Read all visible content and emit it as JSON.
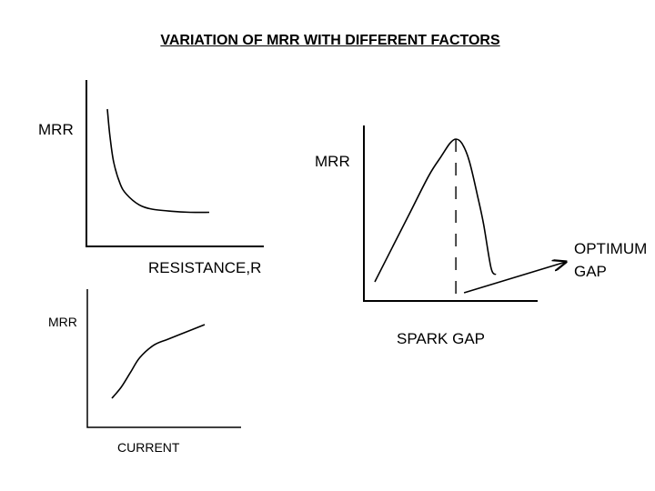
{
  "title": "VARIATION OF MRR WITH DIFFERENT FACTORS",
  "colors": {
    "ink": "#000000",
    "background": "#ffffff"
  },
  "chart_data": [
    {
      "type": "line",
      "ylabel": "MRR",
      "xlabel": "RESISTANCE,R",
      "ticks": false,
      "grid": false,
      "series": [
        {
          "x": [
            0.2,
            0.22,
            0.25,
            0.3,
            0.35,
            0.45,
            0.55,
            0.7,
            0.85,
            1.0
          ],
          "y": [
            1.0,
            0.75,
            0.5,
            0.3,
            0.2,
            0.1,
            0.06,
            0.04,
            0.03,
            0.03
          ]
        }
      ]
    },
    {
      "type": "line",
      "ylabel": "MRR",
      "xlabel": "CURRENT",
      "ticks": false,
      "grid": false,
      "series": [
        {
          "x": [
            0.0,
            0.1,
            0.2,
            0.3,
            0.45,
            0.6,
            0.8,
            1.0
          ],
          "y": [
            0.0,
            0.15,
            0.35,
            0.55,
            0.72,
            0.8,
            0.9,
            1.0
          ]
        }
      ]
    },
    {
      "type": "line",
      "ylabel": "MRR",
      "xlabel": "SPARK GAP",
      "ticks": false,
      "grid": false,
      "series": [
        {
          "x": [
            0.0,
            0.15,
            0.3,
            0.45,
            0.55,
            0.62,
            0.67,
            0.72,
            0.78,
            0.85,
            0.9,
            0.96,
            1.0
          ],
          "y": [
            0.0,
            0.25,
            0.5,
            0.75,
            0.88,
            0.97,
            1.0,
            0.97,
            0.85,
            0.6,
            0.4,
            0.1,
            0.05
          ]
        }
      ],
      "annotation": {
        "text_line1": "OPTIMUM",
        "text_line2": "GAP",
        "target_x": 0.67
      }
    }
  ]
}
